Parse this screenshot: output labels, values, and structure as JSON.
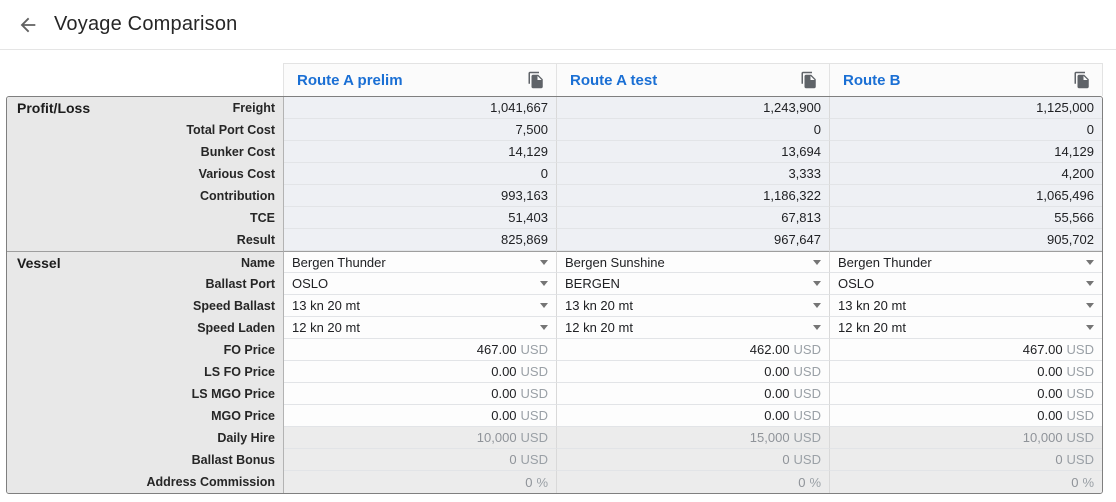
{
  "page": {
    "title": "Voyage Comparison"
  },
  "colors": {
    "header_link": "#1a6fd4",
    "icon_grey": "#5f6368",
    "section_bg": "#e8e8e8",
    "output_bg": "#eef0f4"
  },
  "table": {
    "columns": [
      {
        "label": "Route A prelim"
      },
      {
        "label": "Route A test"
      },
      {
        "label": "Route B"
      }
    ],
    "sections": [
      {
        "name": "Profit/Loss",
        "rows": [
          {
            "label": "Freight",
            "type": "output",
            "values": [
              "1,041,667",
              "1,243,900",
              "1,125,000"
            ]
          },
          {
            "label": "Total Port Cost",
            "type": "output",
            "values": [
              "7,500",
              "0",
              "0"
            ]
          },
          {
            "label": "Bunker Cost",
            "type": "output",
            "values": [
              "14,129",
              "13,694",
              "14,129"
            ]
          },
          {
            "label": "Various Cost",
            "type": "output",
            "values": [
              "0",
              "3,333",
              "4,200"
            ]
          },
          {
            "label": "Contribution",
            "type": "output",
            "values": [
              "993,163",
              "1,186,322",
              "1,065,496"
            ]
          },
          {
            "label": "TCE",
            "type": "output",
            "values": [
              "51,403",
              "67,813",
              "55,566"
            ]
          },
          {
            "label": "Result",
            "type": "output",
            "values": [
              "825,869",
              "967,647",
              "905,702"
            ]
          }
        ]
      },
      {
        "name": "Vessel",
        "rows": [
          {
            "label": "Name",
            "type": "select",
            "values": [
              "Bergen Thunder",
              "Bergen Sunshine",
              "Bergen Thunder"
            ]
          },
          {
            "label": "Ballast Port",
            "type": "select",
            "values": [
              "OSLO",
              "BERGEN",
              "OSLO"
            ]
          },
          {
            "label": "Speed Ballast",
            "type": "select",
            "values": [
              "13 kn 20 mt",
              "13 kn 20 mt",
              "13 kn 20 mt"
            ]
          },
          {
            "label": "Speed Laden",
            "type": "select",
            "values": [
              "12 kn 20 mt",
              "12 kn 20 mt",
              "12 kn 20 mt"
            ]
          },
          {
            "label": "FO Price",
            "type": "input",
            "unit": "USD",
            "values": [
              "467.00",
              "462.00",
              "467.00"
            ]
          },
          {
            "label": "LS FO Price",
            "type": "input",
            "unit": "USD",
            "values": [
              "0.00",
              "0.00",
              "0.00"
            ]
          },
          {
            "label": "LS MGO Price",
            "type": "input",
            "unit": "USD",
            "values": [
              "0.00",
              "0.00",
              "0.00"
            ]
          },
          {
            "label": "MGO Price",
            "type": "input",
            "unit": "USD",
            "values": [
              "0.00",
              "0.00",
              "0.00"
            ]
          },
          {
            "label": "Daily Hire",
            "type": "readonly",
            "unit": "USD",
            "values": [
              "10,000",
              "15,000",
              "10,000"
            ]
          },
          {
            "label": "Ballast Bonus",
            "type": "readonly",
            "unit": "USD",
            "values": [
              "0",
              "0",
              "0"
            ]
          },
          {
            "label": "Address Commission",
            "type": "readonly",
            "unit": "%",
            "values": [
              "0",
              "0",
              "0"
            ]
          }
        ]
      }
    ]
  }
}
